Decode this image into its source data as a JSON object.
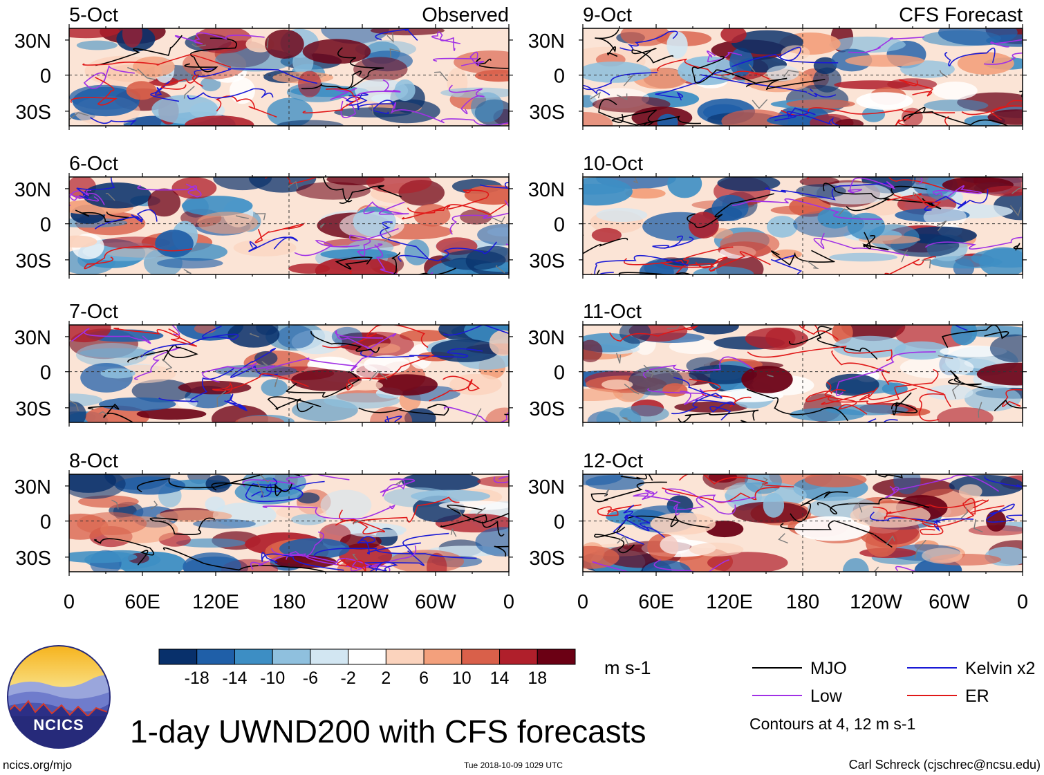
{
  "title": "1-day UWND200 with CFS forecasts",
  "site": "ncics.org/mjo",
  "timestamp": "Tue 2018-10-09 1029 UTC",
  "author": "Carl Schreck (cjschrec@ncsu.edu)",
  "logo_text": "NCICS",
  "columns": {
    "observed": "Observed",
    "forecast": "CFS Forecast"
  },
  "units": "m s-1",
  "contour_note": "Contours at 4, 12 m s-1",
  "legend": [
    {
      "label": "MJO",
      "color": "#000000"
    },
    {
      "label": "Kelvin x2",
      "color": "#1a1ad6"
    },
    {
      "label": "Low",
      "color": "#a030e6"
    },
    {
      "label": "ER",
      "color": "#e01818"
    }
  ],
  "colorbar": {
    "labels": [
      "-18",
      "-14",
      "-10",
      "-6",
      "-2",
      "2",
      "6",
      "10",
      "14",
      "18"
    ],
    "colors": [
      "#08306b",
      "#1f5fa8",
      "#3d8ec4",
      "#8fc0de",
      "#d2e6f2",
      "#ffffff",
      "#fbd3bd",
      "#f3a07c",
      "#d9604a",
      "#b01f2b",
      "#6b0014"
    ]
  },
  "chart_data": {
    "type": "heatmap",
    "variable": "200-hPa zonal wind anomaly",
    "x_tick_labels": [
      "0",
      "60E",
      "120E",
      "180",
      "120W",
      "60W",
      "0"
    ],
    "y_tick_labels": [
      "30N",
      "0",
      "30S"
    ],
    "panels": [
      {
        "date": "5-Oct",
        "source": "Observed"
      },
      {
        "date": "6-Oct",
        "source": "Observed"
      },
      {
        "date": "7-Oct",
        "source": "Observed"
      },
      {
        "date": "8-Oct",
        "source": "Observed"
      },
      {
        "date": "9-Oct",
        "source": "CFS Forecast"
      },
      {
        "date": "10-Oct",
        "source": "CFS Forecast"
      },
      {
        "date": "11-Oct",
        "source": "CFS Forecast"
      },
      {
        "date": "12-Oct",
        "source": "CFS Forecast"
      }
    ]
  }
}
